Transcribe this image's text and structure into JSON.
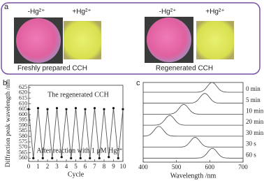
{
  "panel_a": {
    "label": "a",
    "left": {
      "minus_label": "-Hg²⁺",
      "plus_label": "+Hg²⁺",
      "caption": "Freshly prepared CCH"
    },
    "right": {
      "minus_label": "-Hg²⁺",
      "plus_label": "+Hg²⁺",
      "caption": "Regenerated CCH"
    }
  },
  "chart_data": [
    {
      "type": "line",
      "label": "b",
      "xlabel": "Cycle",
      "ylabel": "Diffraction peak wavelength /nm",
      "annotations": [
        "The regenerated CCH",
        "After reaction with 1 μM Hg²⁺"
      ],
      "x": [
        0,
        0.5,
        1,
        1.5,
        2,
        2.5,
        3,
        3.5,
        4,
        4.5,
        5,
        5.5,
        6,
        6.5,
        7,
        7.5,
        8,
        8.5,
        9,
        9.5,
        10
      ],
      "series": [
        {
          "name": null,
          "color": "#555555",
          "values": [
            605,
            560,
            606,
            560,
            605,
            560,
            606,
            561,
            605,
            560,
            606,
            560,
            605,
            560,
            606,
            560,
            605,
            561,
            606,
            560,
            605
          ]
        }
      ],
      "xlim": [
        0,
        10
      ],
      "xticks": [
        0,
        1,
        2,
        3,
        4,
        5,
        6,
        7,
        8,
        9,
        10
      ],
      "ylim": [
        557,
        627
      ],
      "yticks": [
        560,
        565,
        570,
        575,
        580,
        585,
        590,
        595,
        600,
        605,
        610,
        615,
        620,
        625
      ]
    },
    {
      "type": "spectra",
      "label": "c",
      "xlabel": "Wavelength /nm",
      "xlim": [
        400,
        700
      ],
      "xticks": [
        400,
        500,
        600,
        700
      ],
      "series": [
        {
          "name": "0 min",
          "peak": 607
        },
        {
          "name": "5 min",
          "peak": 585
        },
        {
          "name": "10 min",
          "peak": 522
        },
        {
          "name": "20 min",
          "peak": 480
        },
        {
          "name": "30 min",
          "peak": 447
        },
        {
          "name": "30 s",
          "peak": 556
        },
        {
          "name": "60 s",
          "peak": 608
        }
      ]
    }
  ]
}
